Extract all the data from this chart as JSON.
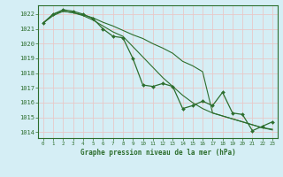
{
  "title": "Graphe pression niveau de la mer (hPa)",
  "bg_color": "#d5eef5",
  "grid_color": "#e8c8c8",
  "line_color": "#2d6e2d",
  "marker_color": "#2d6e2d",
  "ylim": [
    1013.6,
    1022.6
  ],
  "xlim": [
    -0.5,
    23.5
  ],
  "yticks": [
    1014,
    1015,
    1016,
    1017,
    1018,
    1019,
    1020,
    1021,
    1022
  ],
  "xticks": [
    0,
    1,
    2,
    3,
    4,
    5,
    6,
    7,
    8,
    9,
    10,
    11,
    12,
    13,
    14,
    15,
    16,
    17,
    18,
    19,
    20,
    21,
    22,
    23
  ],
  "series_main": [
    1021.4,
    1022.0,
    1022.3,
    1022.2,
    1022.0,
    1021.7,
    1021.0,
    1020.5,
    1020.4,
    1019.0,
    1017.2,
    1017.1,
    1017.3,
    1017.1,
    1015.6,
    1015.8,
    1016.1,
    1015.8,
    1016.7,
    1015.3,
    1015.2,
    1014.1,
    1014.4,
    1014.7
  ],
  "series_smooth": [
    1021.4,
    1022.0,
    1022.2,
    1022.1,
    1021.9,
    1021.6,
    1021.2,
    1020.8,
    1020.5,
    1019.8,
    1019.1,
    1018.4,
    1017.7,
    1017.1,
    1016.5,
    1016.0,
    1015.6,
    1015.3,
    1015.1,
    1014.9,
    1014.7,
    1014.5,
    1014.3,
    1014.2
  ],
  "series_linear": [
    1021.4,
    1021.9,
    1022.2,
    1022.1,
    1021.95,
    1021.75,
    1021.45,
    1021.2,
    1020.9,
    1020.6,
    1020.35,
    1020.0,
    1019.7,
    1019.35,
    1018.8,
    1018.5,
    1018.1,
    1015.3,
    1015.1,
    1014.9,
    1014.7,
    1014.5,
    1014.3,
    1014.15
  ]
}
